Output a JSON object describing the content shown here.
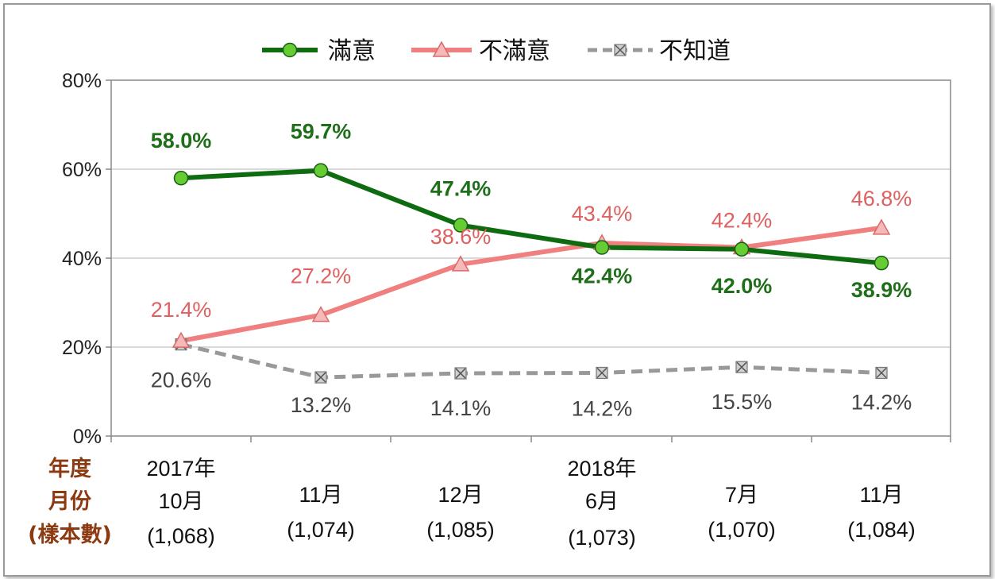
{
  "chart_data": {
    "type": "line",
    "x": [
      "2017-10",
      "2017-11",
      "2017-12",
      "2018-06",
      "2018-07",
      "2018-11"
    ],
    "ylim": [
      0,
      80
    ],
    "yticks": [
      "0%",
      "20%",
      "40%",
      "60%",
      "80%"
    ],
    "grid": true,
    "legend_position": "top",
    "series": [
      {
        "name": "滿意",
        "color": "#0f6b0f",
        "marker_color": "#66cc33",
        "values": [
          58.0,
          59.7,
          47.4,
          42.4,
          42.0,
          38.9
        ],
        "labels": [
          "58.0%",
          "59.7%",
          "47.4%",
          "42.4%",
          "42.0%",
          "38.9%"
        ]
      },
      {
        "name": "不滿意",
        "color": "#f08080",
        "marker_color": "#f6b8b8",
        "values": [
          21.4,
          27.2,
          38.6,
          43.4,
          42.4,
          46.8
        ],
        "labels": [
          "21.4%",
          "27.2%",
          "38.6%",
          "43.4%",
          "42.4%",
          "46.8%"
        ]
      },
      {
        "name": "不知道",
        "color": "#999999",
        "marker_color": "#bbbbbb",
        "values": [
          20.6,
          13.2,
          14.1,
          14.2,
          15.5,
          14.2
        ],
        "labels": [
          "20.6%",
          "13.2%",
          "14.1%",
          "14.2%",
          "15.5%",
          "14.2%"
        ]
      }
    ],
    "row_headers": [
      "年度",
      "月份",
      "(樣本數)"
    ],
    "years": [
      "2017年",
      "",
      "",
      "2018年",
      "",
      ""
    ],
    "months": [
      "10月",
      "11月",
      "12月",
      "6月",
      "7月",
      "11月"
    ],
    "samples": [
      "(1,068)",
      "(1,074)",
      "(1,085)",
      "(1,073)",
      "(1,070)",
      "(1,084)"
    ]
  }
}
